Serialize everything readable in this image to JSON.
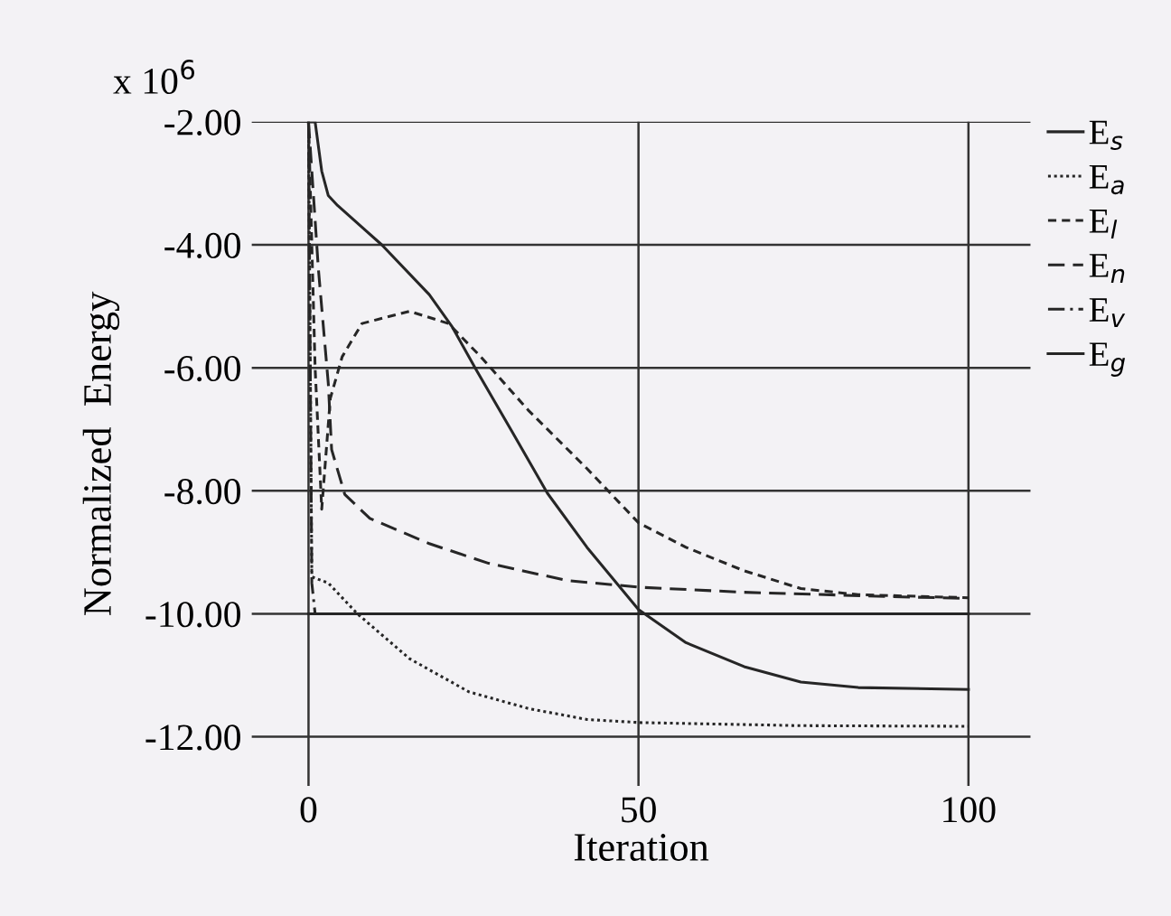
{
  "chart_data": {
    "type": "line",
    "xlabel": "Iteration",
    "ylabel": "Normalized  Energy",
    "annotations": [
      "x 10$^{6}$"
    ],
    "xlim": [
      -8.6,
      109.4
    ],
    "ylim": [
      -12.8,
      -2.0
    ],
    "xticks": [
      0,
      50,
      100
    ],
    "yticks": [
      {
        "value": -2,
        "label": "-2.00"
      },
      {
        "value": -4,
        "label": "-4.00"
      },
      {
        "value": -6,
        "label": "-6.00"
      },
      {
        "value": -8,
        "label": "-8.00"
      },
      {
        "value": -10,
        "label": "-10.00"
      },
      {
        "value": -12,
        "label": "-12.00"
      }
    ],
    "grid": true,
    "legend": "right",
    "marker": "none",
    "series": [
      {
        "name": "E$_{s}$",
        "color": "#262626",
        "line_style": "solid",
        "x": [
          0,
          1,
          2,
          3,
          4.4,
          11.1,
          18.3,
          21.8,
          25.4,
          30.8,
          36.2,
          42.2,
          50,
          57.2,
          66,
          74.6,
          83.3,
          100
        ],
        "values": [
          -2.0,
          -2.0,
          -2.8,
          -3.2,
          -3.36,
          -4.0,
          -4.81,
          -5.34,
          -6.03,
          -7.03,
          -8.04,
          -8.92,
          -9.93,
          -10.47,
          -10.86,
          -11.11,
          -11.2,
          -11.23
        ]
      },
      {
        "name": "E$_{a}$",
        "color": "#262626",
        "line_style": "dotted",
        "x": [
          0,
          0.5,
          3,
          7.4,
          15.3,
          24.3,
          33.3,
          42.2,
          50.3,
          74.6,
          100
        ],
        "values": [
          -2.0,
          -9.4,
          -9.5,
          -10.0,
          -10.73,
          -11.27,
          -11.54,
          -11.72,
          -11.77,
          -11.82,
          -11.83
        ]
      },
      {
        "name": "E$_{l}$",
        "color": "#262626",
        "line_style": "dashed",
        "x": [
          0,
          1,
          2,
          3.3,
          5.1,
          8.1,
          15.3,
          21.2,
          26.1,
          33.3,
          42.2,
          50,
          57.2,
          66,
          74.6,
          83.3,
          100
        ],
        "values": [
          -2.0,
          -6.0,
          -8.3,
          -6.5,
          -5.82,
          -5.28,
          -5.08,
          -5.28,
          -5.82,
          -6.69,
          -7.64,
          -8.52,
          -8.92,
          -9.3,
          -9.59,
          -9.69,
          -9.74
        ]
      },
      {
        "name": "E$_{n}$",
        "color": "#262626",
        "line_style": "longdash",
        "x": [
          0,
          1.5,
          3,
          3.5,
          5.5,
          9.3,
          18.3,
          27.3,
          39.2,
          50.3,
          66,
          87.6,
          100
        ],
        "values": [
          -2.0,
          -4.4,
          -6.26,
          -7.33,
          -8.06,
          -8.45,
          -8.86,
          -9.18,
          -9.46,
          -9.57,
          -9.65,
          -9.72,
          -9.75
        ]
      },
      {
        "name": "E$_{v}$",
        "color": "#262626",
        "line_style": "dashdot",
        "x": [
          0,
          0.5,
          1,
          100
        ],
        "values": [
          -2.0,
          -9.5,
          -10.0,
          -10.0
        ]
      },
      {
        "name": "E$_{g}$",
        "color": "#262626",
        "line_style": "solid",
        "x": [
          0,
          100
        ],
        "values": [
          -10.0,
          -10.0
        ]
      }
    ]
  }
}
